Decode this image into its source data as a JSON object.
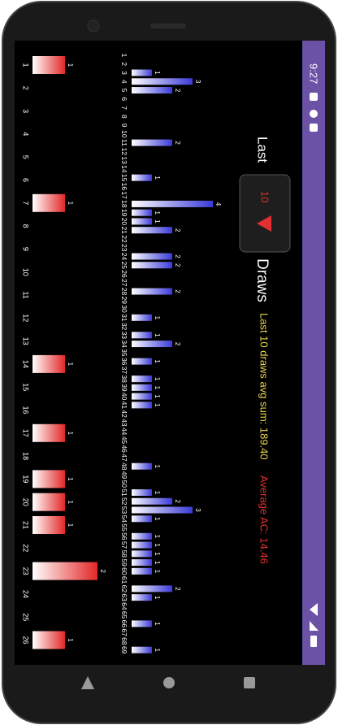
{
  "status_bar": {
    "time": "9:27"
  },
  "controls": {
    "last_label": "Last",
    "draws_select": "10",
    "draws_label": "Draws"
  },
  "stats": {
    "avg_sum": "Last 10 draws avg sum: 189.40",
    "average_ac": "Average AC: 14.46"
  },
  "charts": [
    {
      "type": "bar",
      "colors": [
        "#ffffff",
        "#3a3ad8"
      ],
      "categories": [
        1,
        2,
        3,
        4,
        5,
        6,
        7,
        8,
        9,
        10,
        11,
        12,
        13,
        14,
        15,
        16,
        17,
        18,
        19,
        20,
        21,
        22,
        23,
        24,
        25,
        26,
        27,
        28,
        29,
        30,
        31,
        32,
        33,
        34,
        35,
        36,
        37,
        38,
        39,
        40,
        41,
        42,
        43,
        44,
        45,
        46,
        47,
        48,
        49,
        50,
        51,
        52,
        53,
        54,
        55,
        56,
        57,
        58,
        59,
        60,
        61,
        62,
        63,
        64,
        65,
        66,
        67,
        68,
        69
      ],
      "values": [
        0,
        0,
        1,
        3,
        2,
        0,
        0,
        0,
        0,
        0,
        2,
        0,
        0,
        0,
        1,
        0,
        0,
        4,
        1,
        1,
        2,
        0,
        0,
        2,
        2,
        0,
        0,
        2,
        0,
        0,
        1,
        0,
        1,
        2,
        0,
        1,
        0,
        1,
        1,
        1,
        1,
        0,
        0,
        0,
        0,
        0,
        0,
        1,
        0,
        0,
        1,
        2,
        3,
        1,
        0,
        1,
        1,
        1,
        1,
        1,
        0,
        2,
        1,
        0,
        0,
        1,
        0,
        0,
        1
      ]
    },
    {
      "type": "bar",
      "colors": [
        "#ffffff",
        "#e32626"
      ],
      "categories": [
        1,
        2,
        3,
        4,
        5,
        6,
        7,
        8,
        9,
        10,
        11,
        12,
        13,
        14,
        15,
        16,
        17,
        18,
        19,
        20,
        21,
        22,
        23,
        24,
        25,
        26
      ],
      "values": [
        1,
        0,
        0,
        0,
        0,
        0,
        1,
        0,
        0,
        0,
        0,
        0,
        0,
        1,
        0,
        0,
        1,
        0,
        1,
        1,
        1,
        0,
        2,
        0,
        0,
        1
      ]
    }
  ]
}
